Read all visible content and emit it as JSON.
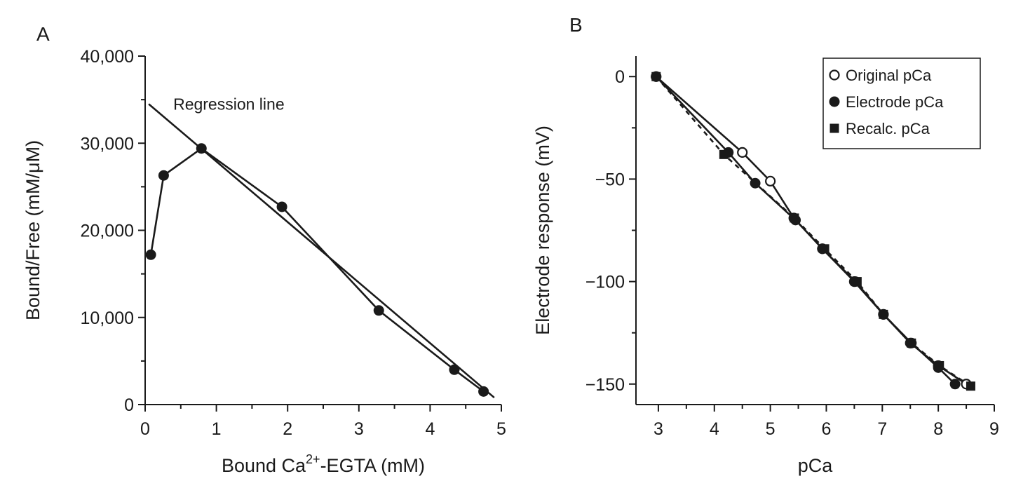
{
  "panels": [
    {
      "label": "A",
      "chart_data": {
        "type": "scatter",
        "title": "",
        "xlabel_parts": [
          "Bound Ca",
          "2+",
          "-EGTA (mM)"
        ],
        "ylabel": "Bound/Free (mM/μM)",
        "xlim": [
          0,
          5
        ],
        "ylim": [
          0,
          40000
        ],
        "xticks": [
          0,
          1,
          2,
          3,
          4,
          5
        ],
        "xtick_labels": [
          "0",
          "1",
          "2",
          "3",
          "4",
          "5"
        ],
        "yticks": [
          0,
          10000,
          20000,
          30000,
          40000
        ],
        "ytick_labels": [
          "0",
          "10,000",
          "20,000",
          "30,000",
          "40,000"
        ],
        "grid": false,
        "series": [
          {
            "x": [
              0.08,
              0.26,
              0.79,
              1.92,
              3.28,
              4.34,
              4.75
            ],
            "y": [
              17200,
              26300,
              29400,
              22700,
              10800,
              4000,
              1500
            ]
          }
        ],
        "regression_line": {
          "x": [
            0.05,
            4.9
          ],
          "y": [
            34500,
            800
          ]
        },
        "annotation": "Regression line"
      }
    },
    {
      "label": "B",
      "chart_data": {
        "type": "line",
        "title": "",
        "xlabel": "pCa",
        "ylabel": "Electrode response (mV)",
        "xlim": [
          2.6,
          9
        ],
        "ylim": [
          -160,
          10
        ],
        "xticks": [
          3,
          4,
          5,
          6,
          7,
          8,
          9
        ],
        "xtick_labels": [
          "3",
          "4",
          "5",
          "6",
          "7",
          "8",
          "9"
        ],
        "yticks": [
          0,
          -50,
          -100,
          -150
        ],
        "ytick_labels": [
          "0",
          "−50",
          "−100",
          "−150"
        ],
        "grid": false,
        "legend_position": "top-right",
        "series": [
          {
            "name": "Original pCa",
            "marker": "open-circle",
            "line": "solid",
            "x": [
              2.96,
              4.5,
              5.0,
              5.42,
              5.93,
              6.5,
              7.02,
              7.5,
              8.0,
              8.5
            ],
            "y": [
              0,
              -37,
              -51,
              -69,
              -84,
              -100,
              -116,
              -130,
              -141,
              -150
            ]
          },
          {
            "name": "Electrode pCa",
            "marker": "filled-circle",
            "line": "solid",
            "x": [
              2.96,
              4.25,
              4.73,
              5.45,
              5.93,
              6.52,
              7.02,
              7.52,
              8.0,
              8.3
            ],
            "y": [
              0,
              -37,
              -52,
              -70,
              -84,
              -100,
              -116,
              -130,
              -142,
              -150
            ]
          },
          {
            "name": "Recalc. pCa",
            "marker": "filled-square",
            "line": "dashed",
            "x": [
              2.96,
              4.17,
              5.43,
              5.97,
              6.55,
              7.02,
              7.52,
              8.02,
              8.58
            ],
            "y": [
              0,
              -38,
              -69,
              -84,
              -100,
              -116,
              -130,
              -141,
              -151
            ]
          }
        ]
      }
    }
  ]
}
